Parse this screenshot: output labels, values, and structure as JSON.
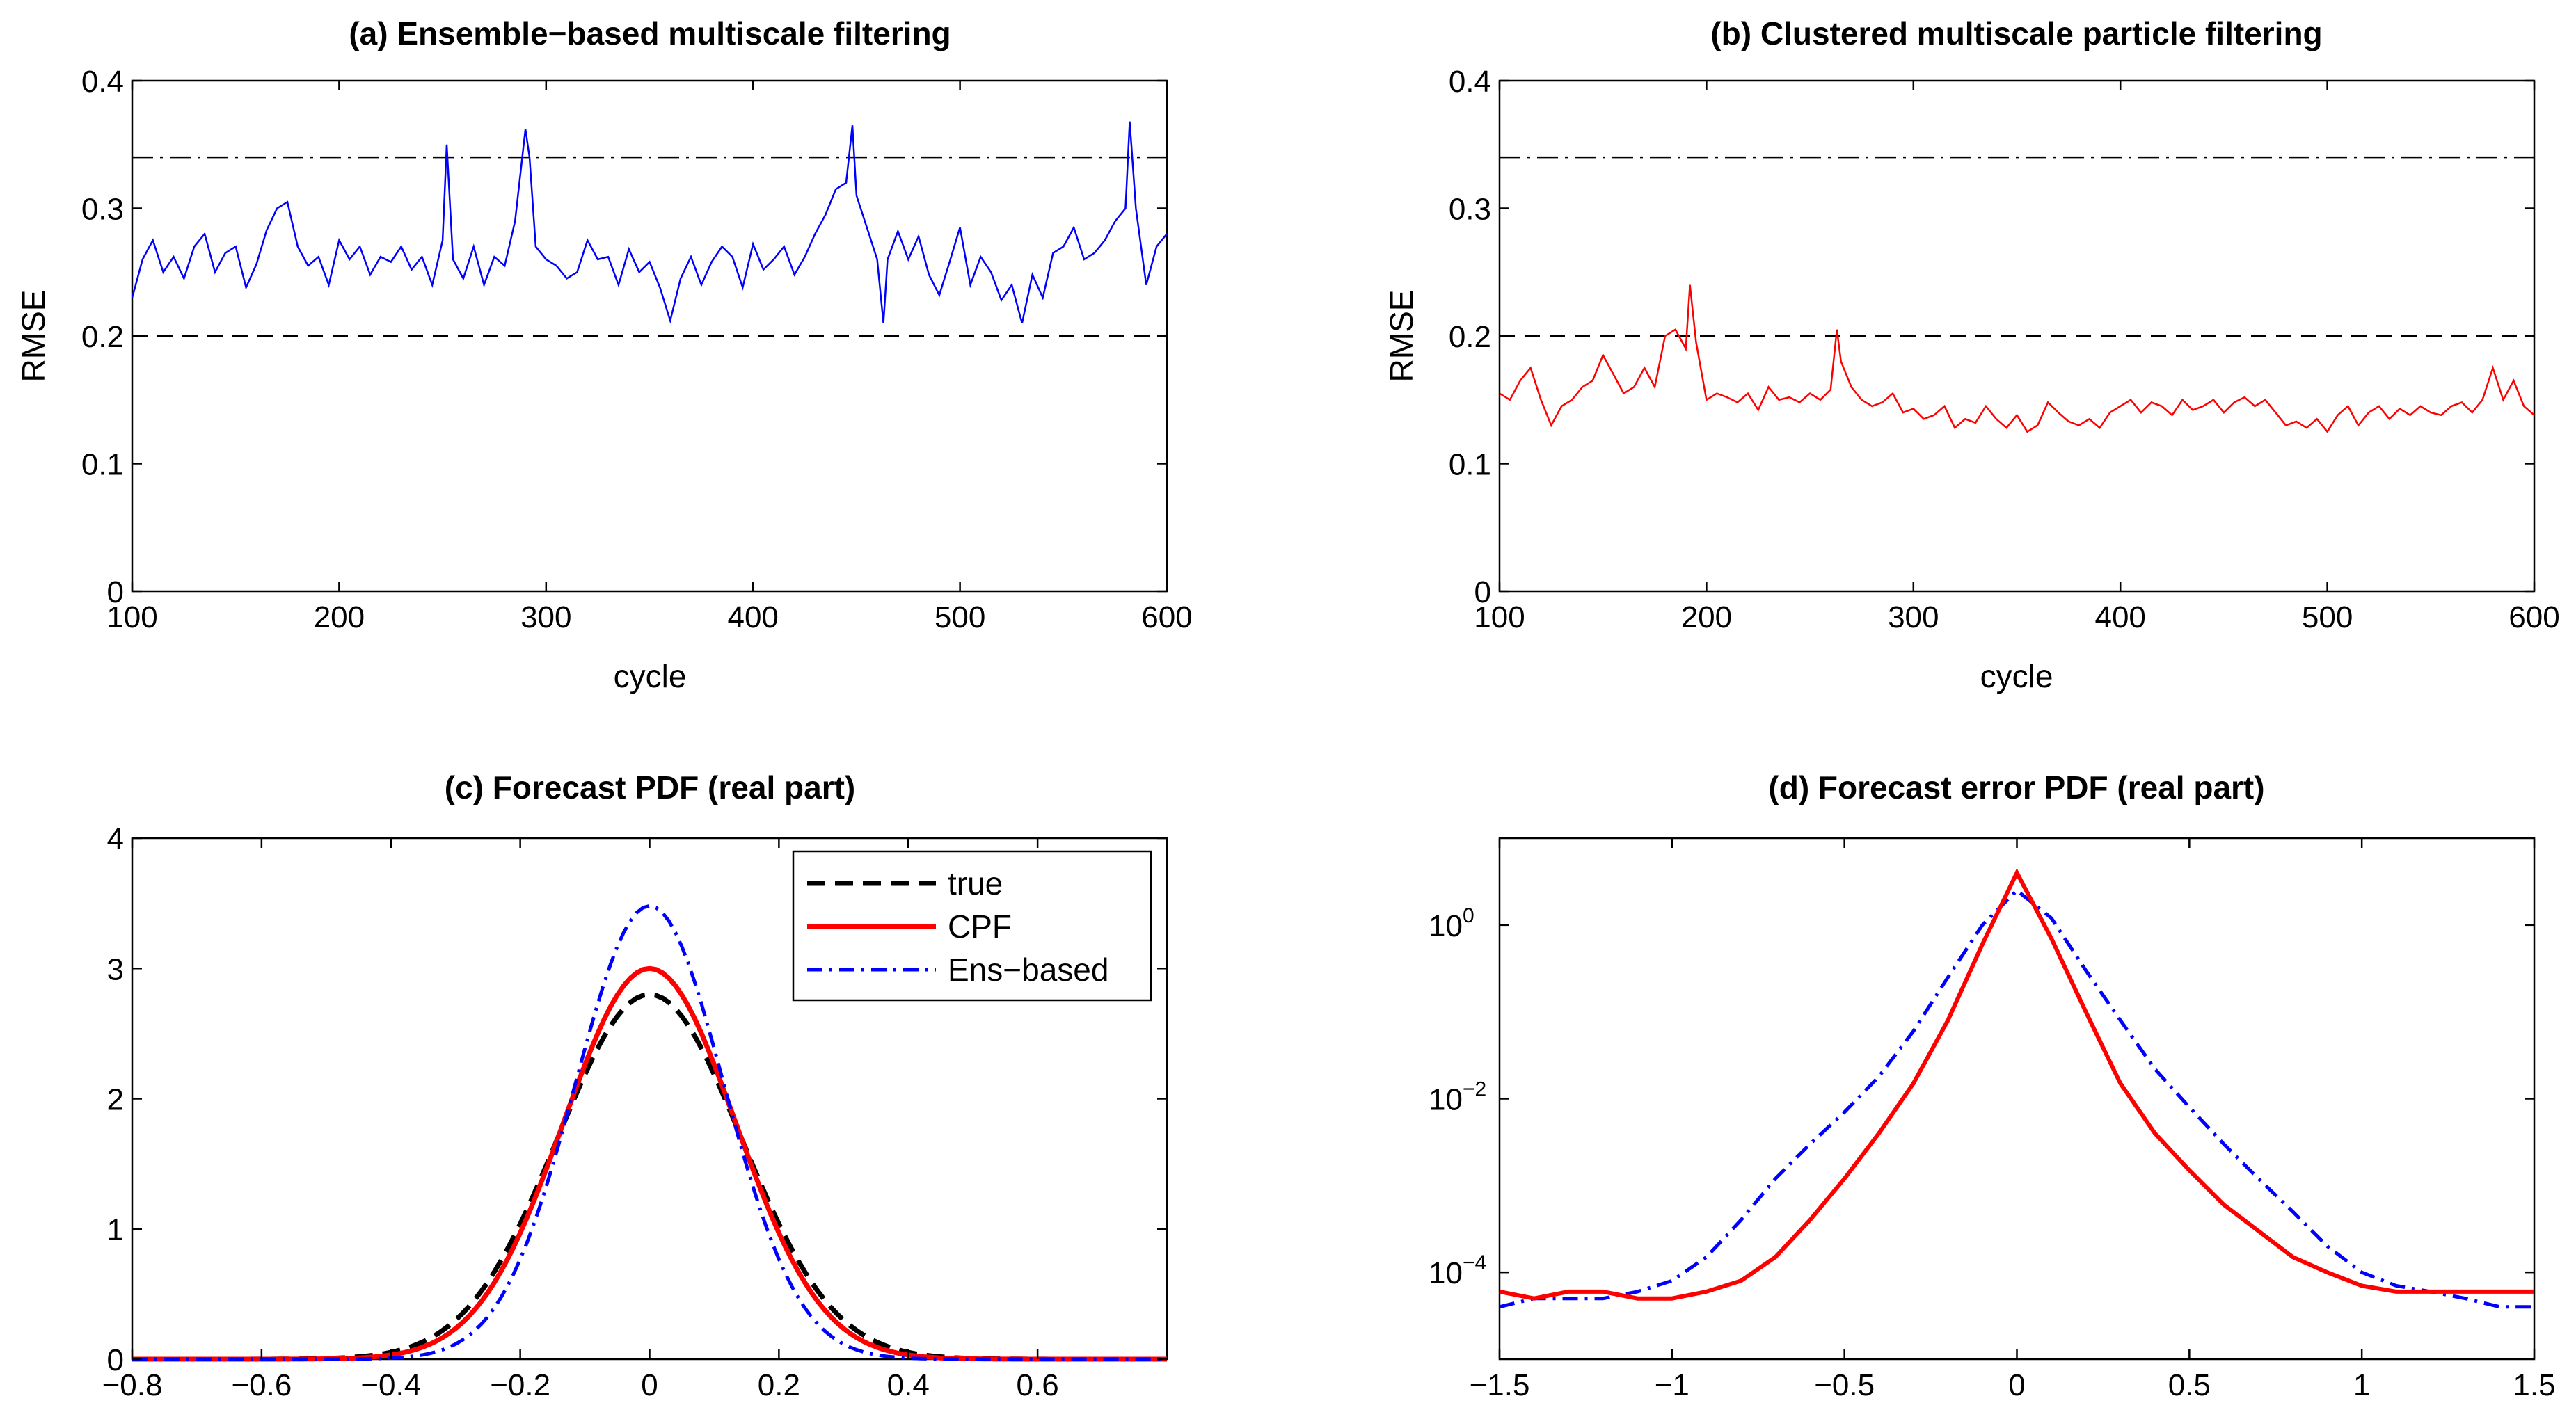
{
  "chart_data": [
    {
      "id": "a",
      "type": "line",
      "title": "(a)  Ensemble−based multiscale filtering",
      "xlabel": "cycle",
      "ylabel": "RMSE",
      "xlim": [
        100,
        600
      ],
      "ylim": [
        0,
        0.4
      ],
      "xticks": [
        100,
        200,
        300,
        400,
        500,
        600
      ],
      "xtick_labels": [
        "100",
        "200",
        "300",
        "400",
        "500",
        "600"
      ],
      "yticks": [
        0,
        0.1,
        0.2,
        0.3,
        0.4
      ],
      "ytick_labels": [
        "0",
        "0.1",
        "0.2",
        "0.3",
        "0.4"
      ],
      "hlines": [
        {
          "name": "dash-dot reference",
          "y": 0.34,
          "style": "dashdot",
          "color": "#000000"
        },
        {
          "name": "dashed reference",
          "y": 0.2,
          "style": "dash",
          "color": "#000000"
        }
      ],
      "series": [
        {
          "name": "RMSE",
          "color": "#0000ff",
          "x": [
            100,
            105,
            110,
            115,
            120,
            125,
            130,
            135,
            140,
            145,
            150,
            155,
            160,
            165,
            170,
            175,
            180,
            185,
            190,
            195,
            200,
            205,
            210,
            215,
            220,
            225,
            230,
            235,
            240,
            245,
            250,
            252,
            255,
            260,
            265,
            270,
            275,
            280,
            285,
            290,
            292,
            295,
            300,
            305,
            310,
            315,
            320,
            325,
            330,
            335,
            340,
            345,
            350,
            355,
            360,
            365,
            370,
            375,
            380,
            385,
            390,
            395,
            400,
            405,
            410,
            415,
            420,
            425,
            430,
            435,
            440,
            445,
            448,
            450,
            455,
            460,
            463,
            465,
            470,
            475,
            480,
            485,
            490,
            495,
            500,
            505,
            510,
            515,
            520,
            525,
            530,
            535,
            540,
            545,
            550,
            555,
            560,
            565,
            570,
            575,
            580,
            582,
            585,
            590,
            595,
            600
          ],
          "values": [
            0.23,
            0.26,
            0.275,
            0.25,
            0.262,
            0.245,
            0.27,
            0.28,
            0.25,
            0.265,
            0.27,
            0.238,
            0.256,
            0.283,
            0.3,
            0.305,
            0.27,
            0.255,
            0.262,
            0.24,
            0.275,
            0.26,
            0.27,
            0.248,
            0.262,
            0.258,
            0.27,
            0.252,
            0.262,
            0.24,
            0.275,
            0.35,
            0.26,
            0.245,
            0.27,
            0.24,
            0.262,
            0.255,
            0.29,
            0.362,
            0.34,
            0.27,
            0.26,
            0.255,
            0.245,
            0.25,
            0.275,
            0.26,
            0.262,
            0.24,
            0.268,
            0.25,
            0.258,
            0.238,
            0.212,
            0.245,
            0.262,
            0.24,
            0.258,
            0.27,
            0.262,
            0.238,
            0.272,
            0.252,
            0.26,
            0.27,
            0.248,
            0.262,
            0.28,
            0.295,
            0.315,
            0.32,
            0.365,
            0.31,
            0.285,
            0.26,
            0.21,
            0.26,
            0.282,
            0.26,
            0.278,
            0.248,
            0.232,
            0.258,
            0.285,
            0.24,
            0.262,
            0.25,
            0.228,
            0.24,
            0.21,
            0.248,
            0.23,
            0.265,
            0.27,
            0.285,
            0.26,
            0.265,
            0.275,
            0.29,
            0.3,
            0.368,
            0.3,
            0.24,
            0.27,
            0.28
          ]
        }
      ]
    },
    {
      "id": "b",
      "type": "line",
      "title": "(b)  Clustered multiscale particle filtering",
      "xlabel": "cycle",
      "ylabel": "RMSE",
      "xlim": [
        100,
        600
      ],
      "ylim": [
        0,
        0.4
      ],
      "xticks": [
        100,
        200,
        300,
        400,
        500,
        600
      ],
      "xtick_labels": [
        "100",
        "200",
        "300",
        "400",
        "500",
        "600"
      ],
      "yticks": [
        0,
        0.1,
        0.2,
        0.3,
        0.4
      ],
      "ytick_labels": [
        "0",
        "0.1",
        "0.2",
        "0.3",
        "0.4"
      ],
      "hlines": [
        {
          "name": "dash-dot reference",
          "y": 0.34,
          "style": "dashdot",
          "color": "#000000"
        },
        {
          "name": "dashed reference",
          "y": 0.2,
          "style": "dash",
          "color": "#000000"
        }
      ],
      "series": [
        {
          "name": "RMSE",
          "color": "#ff0000",
          "x": [
            100,
            105,
            110,
            115,
            120,
            125,
            130,
            135,
            140,
            145,
            150,
            155,
            160,
            165,
            170,
            175,
            180,
            185,
            190,
            192,
            195,
            200,
            205,
            210,
            215,
            220,
            225,
            230,
            235,
            240,
            245,
            250,
            255,
            260,
            263,
            265,
            270,
            275,
            280,
            285,
            290,
            295,
            300,
            305,
            310,
            315,
            320,
            325,
            330,
            335,
            340,
            345,
            350,
            355,
            360,
            365,
            370,
            375,
            380,
            385,
            390,
            395,
            400,
            405,
            410,
            415,
            420,
            425,
            430,
            435,
            440,
            445,
            450,
            455,
            460,
            465,
            470,
            475,
            480,
            485,
            490,
            495,
            500,
            505,
            510,
            515,
            520,
            525,
            530,
            535,
            540,
            545,
            550,
            555,
            560,
            565,
            570,
            575,
            580,
            585,
            590,
            595,
            600
          ],
          "values": [
            0.155,
            0.15,
            0.165,
            0.175,
            0.15,
            0.13,
            0.145,
            0.15,
            0.16,
            0.165,
            0.185,
            0.17,
            0.155,
            0.16,
            0.175,
            0.16,
            0.2,
            0.205,
            0.19,
            0.24,
            0.195,
            0.15,
            0.155,
            0.152,
            0.148,
            0.155,
            0.142,
            0.16,
            0.15,
            0.152,
            0.148,
            0.155,
            0.15,
            0.158,
            0.205,
            0.18,
            0.16,
            0.15,
            0.145,
            0.148,
            0.155,
            0.14,
            0.143,
            0.135,
            0.138,
            0.145,
            0.128,
            0.135,
            0.132,
            0.145,
            0.135,
            0.128,
            0.138,
            0.125,
            0.13,
            0.148,
            0.14,
            0.133,
            0.13,
            0.135,
            0.128,
            0.14,
            0.145,
            0.15,
            0.14,
            0.148,
            0.145,
            0.138,
            0.15,
            0.142,
            0.145,
            0.15,
            0.14,
            0.148,
            0.152,
            0.145,
            0.15,
            0.14,
            0.13,
            0.133,
            0.128,
            0.135,
            0.125,
            0.138,
            0.145,
            0.13,
            0.14,
            0.145,
            0.135,
            0.143,
            0.138,
            0.145,
            0.14,
            0.138,
            0.145,
            0.148,
            0.14,
            0.15,
            0.175,
            0.15,
            0.165,
            0.145,
            0.138
          ]
        }
      ]
    },
    {
      "id": "c",
      "type": "line",
      "title": "(c)  Forecast PDF (real part)",
      "xlabel": "",
      "ylabel": "",
      "xlim": [
        -0.8,
        0.8
      ],
      "ylim": [
        0,
        4
      ],
      "xticks": [
        -0.8,
        -0.6,
        -0.4,
        -0.2,
        0,
        0.2,
        0.4,
        0.6
      ],
      "xtick_labels": [
        "−0.8",
        "−0.6",
        "−0.4",
        "−0.2",
        "0",
        "0.2",
        "0.4",
        "0.6"
      ],
      "yticks": [
        0,
        1,
        2,
        3,
        4
      ],
      "ytick_labels": [
        "0",
        "1",
        "2",
        "3",
        "4"
      ],
      "legend": {
        "position": "top-right",
        "entries": [
          "true",
          "CPF",
          "Ens−based"
        ]
      },
      "series": [
        {
          "name": "true",
          "color": "#000000",
          "style": "dash",
          "model": "gaussian",
          "peak": 2.8,
          "center": 0,
          "sigma": 0.142
        },
        {
          "name": "CPF",
          "color": "#ff0000",
          "style": "solid",
          "model": "gaussian",
          "peak": 3.0,
          "center": 0,
          "sigma": 0.133
        },
        {
          "name": "Ens−based",
          "color": "#0000ff",
          "style": "dashdot",
          "model": "gaussian",
          "peak": 3.48,
          "center": 0,
          "sigma": 0.115
        }
      ]
    },
    {
      "id": "d",
      "type": "line",
      "title": "(d)  Forecast error PDF (real part)",
      "xlabel": "",
      "ylabel": "",
      "xlim": [
        -1.5,
        1.5
      ],
      "ylim": [
        1e-05,
        10
      ],
      "yscale": "log",
      "xticks": [
        -1.5,
        -1,
        -0.5,
        0,
        0.5,
        1,
        1.5
      ],
      "xtick_labels": [
        "−1.5",
        "−1",
        "−0.5",
        "0",
        "0.5",
        "1",
        "1.5"
      ],
      "yticks": [
        0.0001,
        0.01,
        1
      ],
      "ytick_labels": [
        {
          "base": "10",
          "exp": "−4"
        },
        {
          "base": "10",
          "exp": "−2"
        },
        {
          "base": "10",
          "exp": "0"
        }
      ],
      "series": [
        {
          "name": "Ens−based",
          "color": "#0000ff",
          "style": "dashdot",
          "x": [
            -1.5,
            -1.4,
            -1.3,
            -1.2,
            -1.1,
            -1,
            -0.9,
            -0.8,
            -0.7,
            -0.6,
            -0.5,
            -0.4,
            -0.3,
            -0.2,
            -0.1,
            0,
            0.1,
            0.2,
            0.3,
            0.4,
            0.5,
            0.6,
            0.7,
            0.8,
            0.9,
            1,
            1.1,
            1.2,
            1.3,
            1.4,
            1.5
          ],
          "values": [
            4e-05,
            5e-05,
            5e-05,
            5e-05,
            6e-05,
            8e-05,
            0.00015,
            0.0004,
            0.0012,
            0.003,
            0.007,
            0.018,
            0.06,
            0.25,
            1.0,
            2.5,
            1.2,
            0.3,
            0.08,
            0.022,
            0.008,
            0.003,
            0.0012,
            0.0005,
            0.0002,
            0.0001,
            7e-05,
            6e-05,
            5e-05,
            4e-05,
            4e-05
          ]
        },
        {
          "name": "CPF",
          "color": "#ff0000",
          "style": "solid",
          "x": [
            -1.5,
            -1.4,
            -1.3,
            -1.2,
            -1.1,
            -1,
            -0.9,
            -0.8,
            -0.7,
            -0.6,
            -0.5,
            -0.4,
            -0.3,
            -0.2,
            -0.1,
            0,
            0.1,
            0.2,
            0.3,
            0.4,
            0.5,
            0.6,
            0.7,
            0.8,
            0.9,
            1,
            1.1,
            1.2,
            1.3,
            1.4,
            1.5
          ],
          "values": [
            6e-05,
            5e-05,
            6e-05,
            6e-05,
            5e-05,
            5e-05,
            6e-05,
            8e-05,
            0.00015,
            0.0004,
            0.0012,
            0.004,
            0.015,
            0.08,
            0.6,
            4.0,
            0.7,
            0.1,
            0.015,
            0.004,
            0.0015,
            0.0006,
            0.0003,
            0.00015,
            0.0001,
            7e-05,
            6e-05,
            6e-05,
            6e-05,
            6e-05,
            6e-05
          ]
        }
      ]
    }
  ]
}
